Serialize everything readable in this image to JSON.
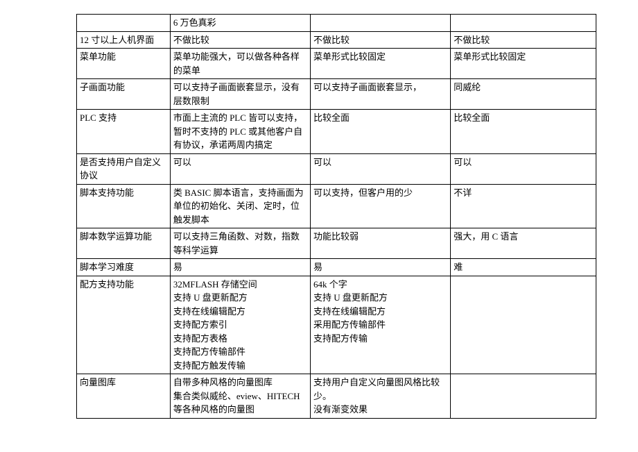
{
  "rows": [
    {
      "c0": "",
      "c1": "6 万色真彩",
      "c2": "",
      "c3": ""
    },
    {
      "c0": "12 寸以上人机界面",
      "c1": "不做比较",
      "c2": "不做比较",
      "c3": "不做比较"
    },
    {
      "c0": "菜单功能",
      "c1": "菜单功能强大，可以做各种各样的菜单",
      "c2": "菜单形式比较固定",
      "c3": "菜单形式比较固定"
    },
    {
      "c0": "子画面功能",
      "c1": "可以支持子画面嵌套显示，没有层数限制",
      "c2": "可以支持子画面嵌套显示，",
      "c3": "同威纶"
    },
    {
      "c0": "PLC 支持",
      "c1": "市面上主流的 PLC 皆可以支持，暂时不支持的 PLC 或其他客户自有协议，承诺两周内搞定",
      "c2": "比较全面",
      "c3": "比较全面"
    },
    {
      "c0": "是否支持用户自定义协议",
      "c1": "可以",
      "c2": "可以",
      "c3": "可以"
    },
    {
      "c0": "脚本支持功能",
      "c1": "类 BASIC 脚本语言，支持画面为单位的初始化、关闭、定时，位触发脚本",
      "c2": "可以支持，但客户用的少",
      "c3": "不详"
    },
    {
      "c0": "脚本数学运算功能",
      "c1": "可以支持三角函数、对数，指数等科学运算",
      "c2": "功能比较弱",
      "c3": "强大，用 C 语言"
    },
    {
      "c0": "脚本学习难度",
      "c1": "易",
      "c2": "易",
      "c3": "难"
    },
    {
      "c0": "配方支持功能",
      "c1": "32MFLASH 存储空间\n支持 U 盘更新配方\n支持在线编辑配方\n支持配方索引\n支持配方表格\n支持配方传输部件\n支持配方触发传输",
      "c2": "64k 个字\n支持 U 盘更新配方\n支持在线编辑配方\n采用配方传输部件\n支持配方传输",
      "c3": ""
    },
    {
      "c0": "向量图库",
      "c1": "自带多种风格的向量图库\n集合类似威纶、eview、HITECH 等各种风格的向量图",
      "c2": "支持用户自定义向量图风格比较少。\n没有渐变效果",
      "c3": ""
    }
  ]
}
